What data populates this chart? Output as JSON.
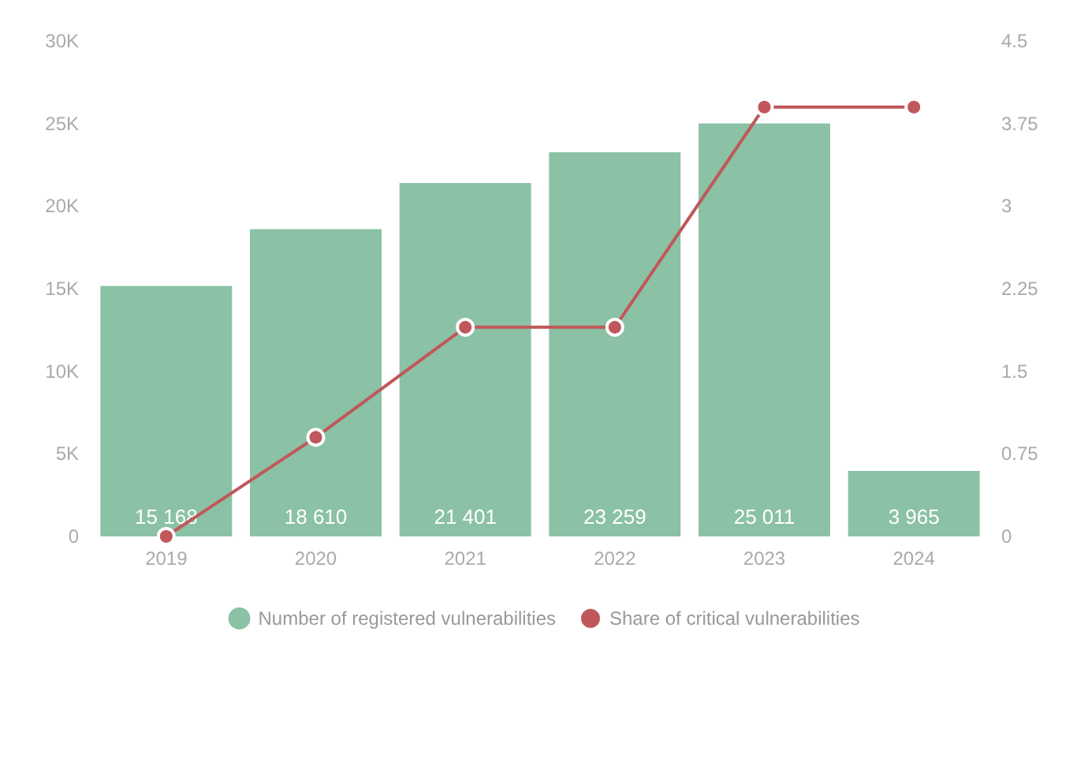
{
  "chart_data": {
    "type": "bar",
    "categories": [
      "2019",
      "2020",
      "2021",
      "2022",
      "2023",
      "2024"
    ],
    "series": [
      {
        "name": "Number of registered vulnerabilities",
        "color": "#8bc1a5",
        "values": [
          15168,
          18610,
          21401,
          23259,
          25011,
          3965
        ],
        "data_labels": true
      },
      {
        "name": "Share of critical vulnerabilities",
        "type": "line",
        "axis": "y2",
        "color": "#c0575a",
        "values": [
          0,
          0.9,
          1.9,
          1.9,
          3.9,
          3.9
        ],
        "marker": "circle"
      }
    ],
    "ylim": [
      0,
      30000
    ],
    "yticks": [
      {
        "value": 0,
        "label": "0"
      },
      {
        "value": 5000,
        "label": "5K"
      },
      {
        "value": 10000,
        "label": "10K"
      },
      {
        "value": 15000,
        "label": "15K"
      },
      {
        "value": 20000,
        "label": "20K"
      },
      {
        "value": 25000,
        "label": "25K"
      },
      {
        "value": 30000,
        "label": "30K"
      }
    ],
    "y2lim": [
      0,
      4.5
    ],
    "y2ticks": [
      0,
      0.75,
      1.5,
      2.25,
      3,
      3.75,
      4.5
    ],
    "grid": false,
    "legend": "bottom"
  }
}
